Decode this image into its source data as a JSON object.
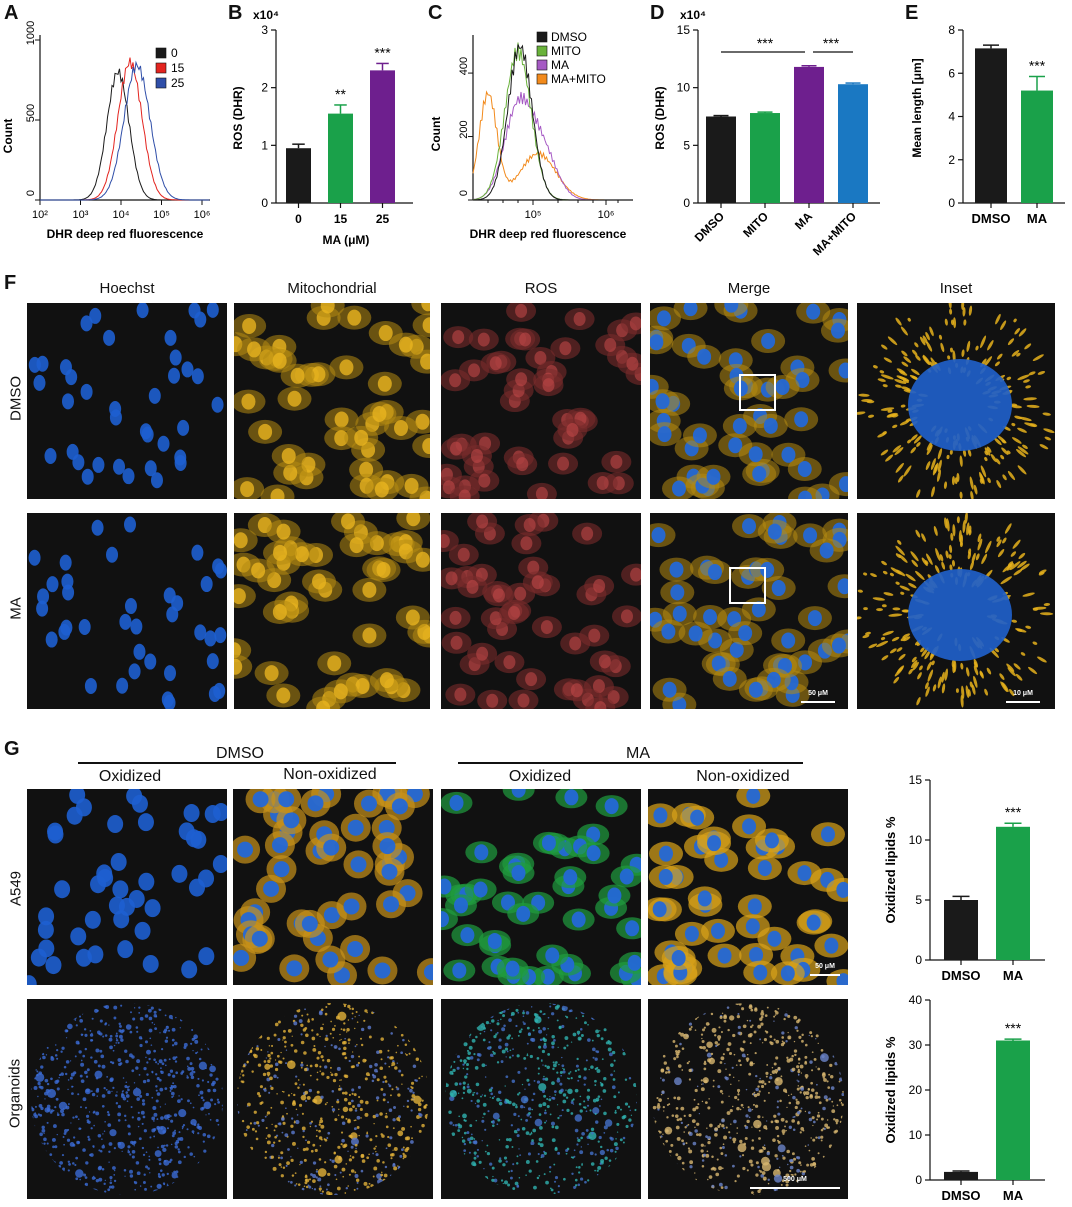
{
  "panels": {
    "A": "A",
    "B": "B",
    "C": "C",
    "D": "D",
    "E": "E",
    "F": "F",
    "G": "G"
  },
  "colors": {
    "black": "#1a1a1a",
    "red": "#e3241f",
    "blue": "#2f4ea8",
    "green": "#1aa14a",
    "purple": "#6e1f8e",
    "orange": "#f28a1c",
    "lightblue": "#1a78c2",
    "lightgreen": "#69b23a",
    "violet": "#a65ac4"
  },
  "chart_data": [
    {
      "id": "A",
      "type": "line",
      "title": "",
      "xlabel": "DHR deep red fluorescence",
      "ylabel": "Count",
      "xscale": "log",
      "xticks": [
        "10²",
        "10³",
        "10⁴",
        "10⁵",
        "10⁶"
      ],
      "yticks": [
        "0",
        "500",
        "1000"
      ],
      "ylim": [
        0,
        1000
      ],
      "legend": "top-right",
      "series": [
        {
          "name": "0",
          "color": "#1a1a1a"
        },
        {
          "name": "15",
          "color": "#e3241f"
        },
        {
          "name": "25",
          "color": "#2f4ea8"
        }
      ]
    },
    {
      "id": "B",
      "type": "bar",
      "ylabel": "ROS (DHR)",
      "xlabel": "MA (μM)",
      "multiplier": "x10⁴",
      "ylim": [
        0,
        3
      ],
      "yticks": [
        "0",
        "1",
        "2",
        "3"
      ],
      "categories": [
        "0",
        "15",
        "25"
      ],
      "values": [
        0.95,
        1.55,
        2.3
      ],
      "errors": [
        0.07,
        0.15,
        0.12
      ],
      "colors": [
        "#1a1a1a",
        "#1aa14a",
        "#6e1f8e"
      ],
      "significance": [
        "",
        "**",
        "***"
      ]
    },
    {
      "id": "C",
      "type": "line",
      "xlabel": "DHR deep red fluorescence",
      "ylabel": "Count",
      "xscale": "log",
      "xticks": [
        "10⁵",
        "10⁶"
      ],
      "yticks": [
        "0",
        "200",
        "400"
      ],
      "ylim": [
        0,
        520
      ],
      "legend": "top-right",
      "series": [
        {
          "name": "DMSO",
          "color": "#1a1a1a"
        },
        {
          "name": "MITO",
          "color": "#69b23a"
        },
        {
          "name": "MA",
          "color": "#a65ac4"
        },
        {
          "name": "MA+MITO",
          "color": "#f28a1c"
        }
      ]
    },
    {
      "id": "D",
      "type": "bar",
      "ylabel": "ROS (DHR)",
      "multiplier": "x10⁴",
      "ylim": [
        0,
        15
      ],
      "yticks": [
        "0",
        "5",
        "10",
        "15"
      ],
      "categories": [
        "DMSO",
        "MITO",
        "MA",
        "MA+MITO"
      ],
      "values": [
        7.5,
        7.8,
        11.8,
        10.3
      ],
      "errors": [
        0.08,
        0.08,
        0.1,
        0.1
      ],
      "colors": [
        "#1a1a1a",
        "#1aa14a",
        "#6e1f8e",
        "#1a78c2"
      ],
      "brackets": [
        {
          "from": 0,
          "to": 2,
          "label": "***"
        },
        {
          "from": 2,
          "to": 3,
          "label": "***"
        }
      ]
    },
    {
      "id": "E",
      "type": "bar",
      "ylabel": "Mean length [μm]",
      "ylim": [
        0,
        8
      ],
      "yticks": [
        "0",
        "2",
        "4",
        "6",
        "8"
      ],
      "categories": [
        "DMSO",
        "MA"
      ],
      "values": [
        7.15,
        5.2
      ],
      "errors": [
        0.15,
        0.65
      ],
      "colors": [
        "#1a1a1a",
        "#1aa14a"
      ],
      "significance": [
        "",
        "***"
      ]
    },
    {
      "id": "G1",
      "type": "bar",
      "ylabel": "Oxidized lipids %",
      "ylim": [
        0,
        15
      ],
      "yticks": [
        "0",
        "5",
        "10",
        "15"
      ],
      "categories": [
        "DMSO",
        "MA"
      ],
      "values": [
        5.0,
        11.1
      ],
      "errors": [
        0.3,
        0.3
      ],
      "colors": [
        "#1a1a1a",
        "#1aa14a"
      ],
      "significance": [
        "",
        "***"
      ]
    },
    {
      "id": "G2",
      "type": "bar",
      "ylabel": "Oxidized lipids %",
      "ylim": [
        0,
        40
      ],
      "yticks": [
        "0",
        "10",
        "20",
        "30",
        "40"
      ],
      "categories": [
        "DMSO",
        "MA"
      ],
      "values": [
        1.8,
        31.0
      ],
      "errors": [
        0.2,
        0.3
      ],
      "colors": [
        "#1a1a1a",
        "#1aa14a"
      ],
      "significance": [
        "",
        "***"
      ]
    }
  ],
  "panelF": {
    "cols": [
      "Hoechst",
      "Mitochondrial",
      "ROS",
      "Merge",
      "Inset"
    ],
    "rows": [
      "DMSO",
      "MA"
    ],
    "scale_main": "50 μM",
    "scale_inset": "10 μM"
  },
  "panelG": {
    "groups": [
      "DMSO",
      "MA"
    ],
    "subcols": [
      "Oxidized",
      "Non-oxidized",
      "Oxidized",
      "Non-oxidized"
    ],
    "rows": [
      "A549",
      "Organoids"
    ],
    "scale_a549": "50 μM",
    "scale_org": "500 μM"
  }
}
